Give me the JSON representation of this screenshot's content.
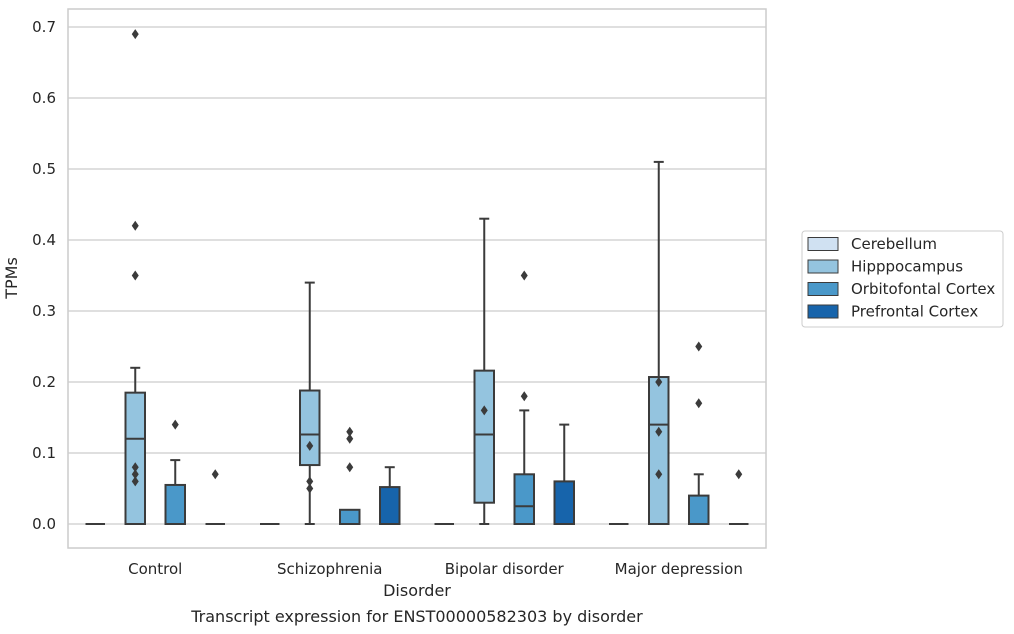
{
  "chart_data": {
    "type": "boxplot",
    "caption": "Transcript expression for ENST00000582303 by disorder",
    "xlabel": "Disorder",
    "ylabel": "TPMs",
    "ylim": [
      -0.034,
      0.725
    ],
    "yticks": [
      "0.0",
      "0.1",
      "0.2",
      "0.3",
      "0.4",
      "0.5",
      "0.6",
      "0.7"
    ],
    "grid": "horizontal",
    "legend_position": "right",
    "categories": [
      "Control",
      "Schizophrenia",
      "Bipolar disorder",
      "Major depression"
    ],
    "series": [
      {
        "name": "Cerebellum",
        "color": "#d0e1f2",
        "boxes": [
          {
            "min": 0.0,
            "q1": 0.0,
            "median": 0.0,
            "q3": 0.0,
            "max": 0.0,
            "outliers": []
          },
          {
            "min": 0.0,
            "q1": 0.0,
            "median": 0.0,
            "q3": 0.0,
            "max": 0.0,
            "outliers": []
          },
          {
            "min": 0.0,
            "q1": 0.0,
            "median": 0.0,
            "q3": 0.0,
            "max": 0.0,
            "outliers": []
          },
          {
            "min": 0.0,
            "q1": 0.0,
            "median": 0.0,
            "q3": 0.0,
            "max": 0.0,
            "outliers": []
          }
        ]
      },
      {
        "name": "Hipppocampus",
        "color": "#94c4df",
        "boxes": [
          {
            "min": 0.0,
            "q1": 0.0,
            "median": 0.12,
            "q3": 0.185,
            "max": 0.22,
            "outliers": [
              0.06,
              0.07,
              0.08,
              0.35,
              0.42,
              0.69
            ]
          },
          {
            "min": 0.0,
            "q1": 0.083,
            "median": 0.126,
            "q3": 0.188,
            "max": 0.34,
            "outliers": [
              0.05,
              0.06,
              0.11
            ]
          },
          {
            "min": 0.0,
            "q1": 0.03,
            "median": 0.126,
            "q3": 0.216,
            "max": 0.43,
            "outliers": [
              0.16
            ]
          },
          {
            "min": 0.0,
            "q1": 0.0,
            "median": 0.14,
            "q3": 0.207,
            "max": 0.51,
            "outliers": [
              0.07,
              0.13,
              0.2
            ]
          }
        ]
      },
      {
        "name": "Orbitofontal Cortex",
        "color": "#4a98c9",
        "boxes": [
          {
            "min": 0.0,
            "q1": 0.0,
            "median": 0.0,
            "q3": 0.055,
            "max": 0.09,
            "outliers": [
              0.14
            ]
          },
          {
            "min": 0.0,
            "q1": 0.0,
            "median": 0.0,
            "q3": 0.02,
            "max": 0.02,
            "outliers": [
              0.08,
              0.12,
              0.13
            ]
          },
          {
            "min": 0.0,
            "q1": 0.0,
            "median": 0.025,
            "q3": 0.07,
            "max": 0.16,
            "outliers": [
              0.18,
              0.35
            ]
          },
          {
            "min": 0.0,
            "q1": 0.0,
            "median": 0.0,
            "q3": 0.04,
            "max": 0.07,
            "outliers": [
              0.17,
              0.25
            ]
          }
        ]
      },
      {
        "name": "Prefrontal Cortex",
        "color": "#1764ab",
        "boxes": [
          {
            "min": 0.0,
            "q1": 0.0,
            "median": 0.0,
            "q3": 0.0,
            "max": 0.0,
            "outliers": [
              0.07
            ]
          },
          {
            "min": 0.0,
            "q1": 0.0,
            "median": 0.0,
            "q3": 0.052,
            "max": 0.08,
            "outliers": []
          },
          {
            "min": 0.0,
            "q1": 0.0,
            "median": 0.0,
            "q3": 0.06,
            "max": 0.14,
            "outliers": []
          },
          {
            "min": 0.0,
            "q1": 0.0,
            "median": 0.0,
            "q3": 0.0,
            "max": 0.0,
            "outliers": [
              0.07
            ]
          }
        ]
      }
    ]
  }
}
